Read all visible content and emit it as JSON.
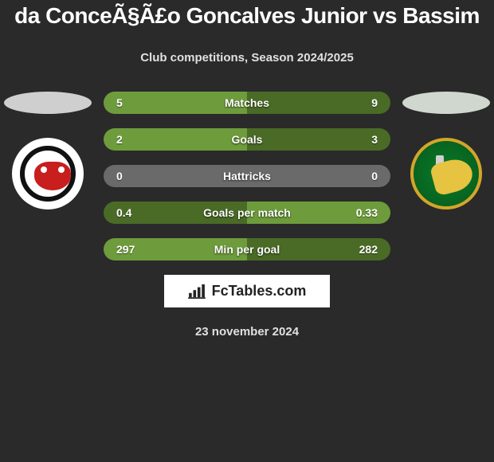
{
  "header": {
    "title": "da ConceÃ§Ã£o Goncalves Junior vs Bassim",
    "subtitle": "Club competitions, Season 2024/2025"
  },
  "stats": [
    {
      "label": "Matches",
      "left_val": "5",
      "right_val": "9",
      "left_bg": "#6e9c3c",
      "right_bg": "#4a6b26"
    },
    {
      "label": "Goals",
      "left_val": "2",
      "right_val": "3",
      "left_bg": "#6e9c3c",
      "right_bg": "#4a6b26"
    },
    {
      "label": "Hattricks",
      "left_val": "0",
      "right_val": "0",
      "left_bg": "#6a6a6a",
      "right_bg": "#6a6a6a"
    },
    {
      "label": "Goals per match",
      "left_val": "0.4",
      "right_val": "0.33",
      "left_bg": "#4a6b26",
      "right_bg": "#6e9c3c"
    },
    {
      "label": "Min per goal",
      "left_val": "297",
      "right_val": "282",
      "left_bg": "#6e9c3c",
      "right_bg": "#4a6b26"
    }
  ],
  "footer": {
    "brand_text": "FcTables.com",
    "date_text": "23 november 2024"
  },
  "silhouette_colors": {
    "left": "#cfcfcf",
    "right": "#cfd7cf"
  }
}
